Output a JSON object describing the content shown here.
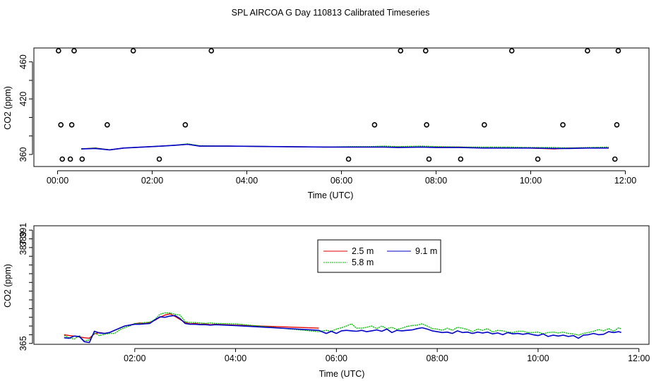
{
  "title": "SPL AIRCOA G  Day 110813  Calibrated Timeseries",
  "colors": {
    "red": "#e00000",
    "green": "#00c000",
    "blue": "#0000c8",
    "axis": "#000000"
  },
  "chart_data": [
    {
      "type": "line",
      "xlabel": "Time (UTC)",
      "ylabel": "CO2 (ppm)",
      "xlim": [
        -0.5,
        12.5
      ],
      "ylim": [
        347,
        475
      ],
      "x_ticks": [
        0,
        2,
        4,
        6,
        8,
        10,
        12
      ],
      "x_tick_labels": [
        "00:00",
        "02:00",
        "04:00",
        "06:00",
        "08:00",
        "10:00",
        "12:00"
      ],
      "y_ticks": [
        360,
        380,
        400,
        420,
        440,
        460
      ],
      "y_tick_labels": [
        "360",
        "",
        "",
        "420",
        "",
        "460"
      ],
      "series": [
        {
          "name": "2.5 m",
          "color": "red",
          "x": [
            0.5,
            0.8,
            1.1,
            1.4,
            1.8,
            2.2,
            2.5,
            2.75,
            3.0,
            3.4,
            3.6,
            5.65,
            6.2,
            6.6,
            6.9,
            7.2,
            7.7,
            8.0,
            8.5,
            9.0,
            9.5,
            10.0,
            10.5,
            10.8,
            11.2,
            11.65
          ],
          "y": [
            366,
            367,
            365,
            367,
            368,
            369,
            370,
            371,
            369,
            369,
            369,
            368,
            368,
            368,
            368,
            368,
            368,
            368,
            368,
            367,
            367,
            367,
            366,
            367,
            367,
            367
          ]
        },
        {
          "name": "5.8 m",
          "color": "green",
          "x": [
            0.5,
            0.8,
            1.1,
            1.4,
            1.8,
            2.2,
            2.5,
            2.75,
            3.0,
            3.4,
            3.6,
            5.65,
            6.2,
            6.6,
            6.9,
            7.2,
            7.7,
            8.0,
            8.5,
            9.0,
            9.5,
            10.0,
            10.5,
            10.8,
            11.2,
            11.65
          ],
          "y": [
            366,
            367,
            365,
            367,
            368,
            369,
            370,
            371.5,
            369.5,
            369,
            369,
            368,
            368.5,
            368.5,
            369,
            368.5,
            369,
            368.5,
            368,
            368,
            368,
            367.5,
            367.5,
            367,
            367.5,
            368
          ]
        },
        {
          "name": "9.1 m",
          "color": "blue",
          "x": [
            0.5,
            0.8,
            1.1,
            1.4,
            1.8,
            2.2,
            2.5,
            2.75,
            3.0,
            3.4,
            3.6,
            5.65,
            6.2,
            6.6,
            6.9,
            7.2,
            7.7,
            8.0,
            8.5,
            9.0,
            9.5,
            10.0,
            10.5,
            10.8,
            11.2,
            11.65
          ],
          "y": [
            366,
            366.5,
            365,
            367,
            368,
            369,
            370,
            371,
            369,
            369,
            369,
            368,
            368,
            368,
            368,
            367.5,
            368,
            367.5,
            367.5,
            367,
            367,
            367,
            366.5,
            366.5,
            367,
            367
          ]
        }
      ],
      "points": [
        {
          "x": 0.02,
          "y": 472
        },
        {
          "x": 0.35,
          "y": 472
        },
        {
          "x": 1.6,
          "y": 472
        },
        {
          "x": 3.25,
          "y": 472
        },
        {
          "x": 7.25,
          "y": 472
        },
        {
          "x": 7.78,
          "y": 472
        },
        {
          "x": 9.6,
          "y": 472
        },
        {
          "x": 11.2,
          "y": 472
        },
        {
          "x": 11.85,
          "y": 472
        },
        {
          "x": 0.07,
          "y": 392
        },
        {
          "x": 0.3,
          "y": 392
        },
        {
          "x": 1.05,
          "y": 392
        },
        {
          "x": 2.7,
          "y": 392
        },
        {
          "x": 6.7,
          "y": 392
        },
        {
          "x": 7.8,
          "y": 392
        },
        {
          "x": 9.02,
          "y": 392
        },
        {
          "x": 10.68,
          "y": 392
        },
        {
          "x": 11.82,
          "y": 392
        },
        {
          "x": 0.1,
          "y": 355
        },
        {
          "x": 0.27,
          "y": 355
        },
        {
          "x": 0.52,
          "y": 355
        },
        {
          "x": 2.15,
          "y": 355
        },
        {
          "x": 6.15,
          "y": 355
        },
        {
          "x": 7.85,
          "y": 355
        },
        {
          "x": 8.52,
          "y": 355
        },
        {
          "x": 10.15,
          "y": 355
        },
        {
          "x": 11.78,
          "y": 355
        }
      ]
    },
    {
      "type": "line",
      "xlabel": "Time (UTC)",
      "ylabel": "CO2 (ppm)",
      "xlim": [
        0.0,
        12.2
      ],
      "ylim": [
        364.8,
        392.0
      ],
      "x_ticks": [
        2,
        4,
        6,
        8,
        10,
        12
      ],
      "x_tick_labels": [
        "02:00",
        "04:00",
        "06:00",
        "08:00",
        "10:00",
        "12:00"
      ],
      "y_ticks": [
        365,
        367,
        369,
        371,
        373,
        375,
        377,
        379,
        381,
        383,
        385,
        387,
        389,
        391
      ],
      "y_tick_labels": [
        "365",
        "",
        "",
        "",
        "",
        "",
        "",
        "",
        "",
        "",
        "",
        "387",
        "389",
        "391"
      ],
      "legend": [
        "2.5 m",
        "5.8 m",
        "9.1 m"
      ],
      "legend_position": "top-center",
      "series": [
        {
          "name": "2.5 m",
          "color": "red",
          "x": [
            0.6,
            0.7,
            0.8,
            0.9,
            1.0,
            1.1,
            1.2,
            1.3,
            1.4,
            1.5,
            1.6,
            1.7,
            1.8,
            1.9,
            2.0,
            2.1,
            2.2,
            2.3,
            2.4,
            2.5,
            2.6,
            2.7,
            2.8,
            2.9,
            3.0,
            3.1,
            3.2,
            3.3,
            3.4,
            3.5,
            3.6,
            4.0,
            5.65
          ],
          "y": [
            367,
            366.8,
            366.7,
            366.5,
            366.3,
            366.2,
            367.2,
            367.5,
            367.3,
            367.5,
            368,
            368.5,
            369,
            369.2,
            369.5,
            369.7,
            369.6,
            369.8,
            370.3,
            371,
            371.5,
            371.8,
            371.2,
            370.5,
            369.8,
            369.5,
            369.6,
            369.4,
            369.5,
            369.3,
            369.4,
            369.2,
            368.5
          ]
        },
        {
          "name": "5.8 m",
          "color": "green",
          "x": [
            0.6,
            0.7,
            0.8,
            0.9,
            1.0,
            1.1,
            1.2,
            1.3,
            1.4,
            1.5,
            1.6,
            1.7,
            1.8,
            1.9,
            2.0,
            2.1,
            2.2,
            2.3,
            2.4,
            2.5,
            2.6,
            2.7,
            2.8,
            2.9,
            3.0,
            3.1,
            3.2,
            3.3,
            3.4,
            3.5,
            3.6,
            4.0,
            5.65,
            5.8,
            5.9,
            6.0,
            6.1,
            6.2,
            6.3,
            6.4,
            6.5,
            6.6,
            6.7,
            6.8,
            6.9,
            7.0,
            7.1,
            7.2,
            7.3,
            7.4,
            7.5,
            7.6,
            7.7,
            7.8,
            7.9,
            8.0,
            8.1,
            8.2,
            8.3,
            8.4,
            8.5,
            8.6,
            8.7,
            8.8,
            8.9,
            9.0,
            9.1,
            9.2,
            9.3,
            9.4,
            9.5,
            9.6,
            9.7,
            9.8,
            9.9,
            10.0,
            10.1,
            10.2,
            10.3,
            10.4,
            10.5,
            10.6,
            10.7,
            10.8,
            10.9,
            11.0,
            11.1,
            11.2,
            11.3,
            11.4,
            11.5,
            11.6,
            11.65
          ],
          "y": [
            366.8,
            366.3,
            366,
            366.8,
            365.6,
            365.8,
            367.4,
            366.8,
            367.1,
            367.3,
            367.3,
            368.1,
            368.6,
            369,
            369.6,
            369.6,
            369.8,
            369.9,
            370.5,
            371.7,
            372,
            372,
            371.7,
            371.5,
            370,
            369.8,
            369.8,
            369.7,
            369.6,
            369.7,
            369.6,
            369.5,
            367.7,
            368.0,
            367.8,
            368.3,
            368.6,
            369.0,
            369.5,
            368.5,
            368.5,
            368.7,
            369.0,
            368.4,
            369.0,
            368.4,
            368.7,
            368.2,
            368.5,
            368.9,
            369.1,
            369.2,
            369.5,
            369.0,
            368.4,
            368.3,
            368.0,
            368.5,
            368.0,
            368.7,
            368.5,
            368.2,
            367.7,
            368.3,
            368.0,
            368.4,
            367.6,
            368.0,
            367.9,
            367.6,
            367.5,
            367.8,
            367.8,
            367.5,
            367.5,
            367.6,
            367.2,
            367.5,
            367.6,
            367.4,
            367.6,
            367.3,
            367.2,
            366.9,
            367.3,
            367.5,
            367.8,
            368.2,
            367.9,
            368.4,
            367.8,
            368.6,
            368.3
          ]
        },
        {
          "name": "9.1 m",
          "color": "blue",
          "x": [
            0.6,
            0.7,
            0.8,
            0.9,
            1.0,
            1.1,
            1.2,
            1.3,
            1.4,
            1.5,
            1.6,
            1.7,
            1.8,
            1.9,
            2.0,
            2.1,
            2.2,
            2.3,
            2.4,
            2.5,
            2.6,
            2.7,
            2.8,
            2.9,
            3.0,
            3.1,
            3.2,
            3.3,
            3.4,
            3.5,
            3.6,
            4.0,
            5.65,
            5.8,
            5.9,
            6.0,
            6.1,
            6.2,
            6.3,
            6.4,
            6.5,
            6.6,
            6.7,
            6.8,
            6.9,
            7.0,
            7.1,
            7.2,
            7.3,
            7.4,
            7.5,
            7.6,
            7.7,
            7.8,
            7.9,
            8.0,
            8.1,
            8.2,
            8.3,
            8.4,
            8.5,
            8.6,
            8.7,
            8.8,
            8.9,
            9.0,
            9.1,
            9.2,
            9.3,
            9.4,
            9.5,
            9.6,
            9.7,
            9.8,
            9.9,
            10.0,
            10.1,
            10.2,
            10.3,
            10.4,
            10.5,
            10.6,
            10.7,
            10.8,
            10.9,
            11.0,
            11.1,
            11.2,
            11.3,
            11.4,
            11.5,
            11.6,
            11.65
          ],
          "y": [
            366.3,
            366.2,
            366.7,
            366.6,
            365.4,
            365.2,
            367.8,
            367.4,
            367.3,
            367.5,
            368,
            368.5,
            369,
            369.2,
            369.4,
            369.4,
            369.5,
            369.6,
            370.4,
            371.1,
            371.0,
            371.3,
            371.4,
            370.7,
            369.6,
            369.4,
            369.4,
            369.3,
            369.3,
            369.2,
            369.3,
            369.1,
            368.0,
            367.3,
            367.8,
            367.3,
            367.9,
            368.0,
            367.9,
            367.8,
            368.0,
            367.7,
            367.9,
            368.1,
            367.8,
            368.3,
            367.5,
            368.0,
            367.9,
            368.0,
            368.1,
            368.4,
            368.6,
            368.3,
            367.9,
            367.7,
            367.5,
            367.6,
            367.3,
            367.9,
            367.5,
            367.6,
            367.3,
            367.6,
            367.4,
            367.6,
            367.2,
            367.4,
            367.0,
            367.5,
            367.2,
            367.3,
            367.1,
            367.3,
            367.0,
            366.8,
            367.2,
            366.6,
            366.9,
            366.7,
            366.9,
            366.6,
            366.8,
            366.2,
            366.9,
            367.0,
            367.3,
            367.0,
            367.1,
            367.7,
            367.5,
            367.7,
            367.5
          ]
        }
      ]
    }
  ]
}
